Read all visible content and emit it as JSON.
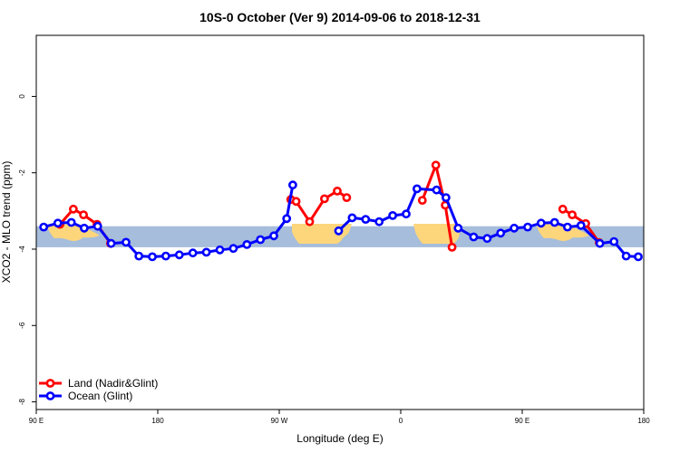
{
  "chart_data": {
    "type": "line",
    "title": "10S-0 October (Ver 9)   2014-09-06 to 2018-12-31",
    "xlabel": "Longitude (deg E)",
    "ylabel": "XCO2 - MLO trend (ppm)",
    "xlim": [
      90,
      540
    ],
    "ylim": [
      -8.2,
      1.6
    ],
    "x_ticks": [
      {
        "value": 90,
        "label": "90 E"
      },
      {
        "value": 180,
        "label": "180"
      },
      {
        "value": 270,
        "label": "90 W"
      },
      {
        "value": 360,
        "label": "0"
      },
      {
        "value": 450,
        "label": "90 E"
      },
      {
        "value": 540,
        "label": "180"
      }
    ],
    "y_ticks": [
      {
        "value": 0,
        "label": "0"
      },
      {
        "value": -2,
        "label": "-2"
      },
      {
        "value": -4,
        "label": "-4"
      },
      {
        "value": -6,
        "label": "-6"
      },
      {
        "value": -8,
        "label": "-8"
      }
    ],
    "grid": false,
    "legend_position": "bottom-left",
    "background_band": {
      "ymin": -3.95,
      "ymax": -3.4,
      "ocean_color": "#a6bddb",
      "land_color": "#fdd67c"
    },
    "series": [
      {
        "name": "Land (Nadir&Glint)",
        "color": "#ff0000",
        "segments": [
          [
            [
              107.5,
              -3.35
            ],
            [
              117.5,
              -2.95
            ],
            [
              125,
              -3.1
            ],
            [
              135,
              -3.35
            ],
            [
              145,
              -3.85
            ]
          ],
          [
            [
              278.5,
              -2.7
            ],
            [
              282.5,
              -2.75
            ],
            [
              292.5,
              -3.28
            ],
            [
              303.5,
              -2.68
            ],
            [
              313,
              -2.48
            ],
            [
              320,
              -2.65
            ]
          ],
          [
            [
              376,
              -2.72
            ],
            [
              386,
              -1.8
            ],
            [
              393,
              -2.85
            ],
            [
              398,
              -3.95
            ]
          ],
          [
            [
              480,
              -2.95
            ],
            [
              487,
              -3.1
            ],
            [
              497,
              -3.33
            ],
            [
              507,
              -3.83
            ]
          ]
        ]
      },
      {
        "name": "Ocean (Glint)",
        "color": "#0000ff",
        "segments": [
          [
            [
              95.5,
              -3.42
            ],
            [
              106,
              -3.32
            ],
            [
              116,
              -3.3
            ],
            [
              125.5,
              -3.45
            ],
            [
              135.5,
              -3.4
            ],
            [
              145.5,
              -3.85
            ],
            [
              156.5,
              -3.82
            ],
            [
              166,
              -4.18
            ],
            [
              176,
              -4.2
            ],
            [
              186,
              -4.18
            ],
            [
              196,
              -4.15
            ],
            [
              206,
              -4.1
            ],
            [
              216,
              -4.08
            ],
            [
              226,
              -4.02
            ],
            [
              236,
              -3.98
            ],
            [
              246,
              -3.88
            ],
            [
              256,
              -3.75
            ],
            [
              266,
              -3.65
            ],
            [
              275.5,
              -3.2
            ],
            [
              280,
              -2.32
            ]
          ],
          [
            [
              314,
              -3.52
            ],
            [
              324,
              -3.18
            ],
            [
              334,
              -3.22
            ],
            [
              344,
              -3.28
            ],
            [
              354,
              -3.12
            ],
            [
              364,
              -3.08
            ],
            [
              372,
              -2.42
            ],
            [
              386.5,
              -2.45
            ],
            [
              393.5,
              -2.65
            ],
            [
              402.5,
              -3.45
            ],
            [
              414,
              -3.68
            ],
            [
              424,
              -3.72
            ],
            [
              434,
              -3.58
            ],
            [
              444,
              -3.45
            ],
            [
              454,
              -3.42
            ],
            [
              464,
              -3.32
            ],
            [
              474,
              -3.3
            ],
            [
              483.5,
              -3.42
            ],
            [
              493.5,
              -3.38
            ],
            [
              507.5,
              -3.85
            ],
            [
              518,
              -3.8
            ],
            [
              527,
              -4.18
            ],
            [
              536,
              -4.2
            ]
          ]
        ]
      }
    ]
  }
}
